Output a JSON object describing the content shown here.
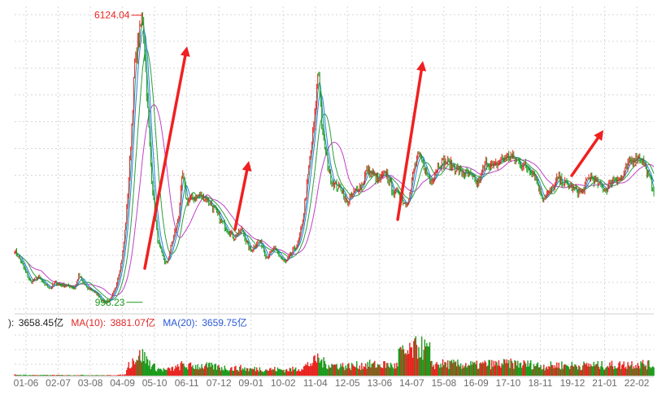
{
  "chart_data": {
    "type": "candlestick",
    "title": "",
    "price_range": [
      880,
      6250
    ],
    "volume_ylim": [
      0,
      14000
    ],
    "grid": true,
    "x_ticks": [
      "01-06",
      "02-07",
      "03-08",
      "04-09",
      "05-10",
      "06-11",
      "07-12",
      "09-01",
      "10-02",
      "11-04",
      "12-05",
      "13-06",
      "14-07",
      "15-08",
      "16-09",
      "17-10",
      "18-11",
      "19-12",
      "21-01",
      "22-02"
    ],
    "price": {
      "x": [
        0,
        1,
        3,
        4,
        6,
        7,
        9,
        10,
        12,
        14,
        15,
        16,
        18,
        19,
        21,
        22,
        23,
        24,
        25,
        26,
        27,
        28,
        29,
        30,
        32,
        33,
        34,
        35,
        36,
        38,
        39,
        41,
        42,
        43,
        45,
        46,
        48,
        50,
        52,
        55,
        57,
        58,
        59,
        60,
        61,
        62,
        63,
        65,
        67,
        68,
        69,
        70,
        71,
        72,
        73,
        75,
        76,
        77,
        79,
        80,
        82,
        83,
        85,
        87,
        88,
        90,
        91,
        93,
        94,
        95,
        96,
        97,
        98,
        99,
        100,
        101,
        102,
        103,
        104,
        105,
        106,
        108,
        110,
        112,
        114,
        115,
        116,
        118,
        120,
        122,
        124,
        126,
        128,
        130,
        132,
        134,
        136,
        138,
        140,
        142,
        144,
        146,
        148,
        150,
        152,
        154,
        156,
        157,
        158,
        160
      ],
      "close": [
        1920,
        1800,
        1500,
        1350,
        1450,
        1340,
        1250,
        1350,
        1300,
        1280,
        1250,
        1480,
        1250,
        1230,
        1120,
        1010,
        1000,
        1050,
        1200,
        1500,
        1850,
        2600,
        3700,
        5200,
        6124,
        4800,
        3500,
        2600,
        2000,
        1650,
        1950,
        2500,
        3300,
        2800,
        2850,
        2900,
        2850,
        2650,
        2400,
        2150,
        2300,
        2050,
        1900,
        2000,
        2100,
        2000,
        1800,
        1950,
        1750,
        1700,
        1850,
        1950,
        2050,
        2400,
        3000,
        4200,
        5200,
        4000,
        3200,
        3100,
        3000,
        2750,
        2950,
        3100,
        3350,
        3250,
        3150,
        3300,
        3100,
        2900,
        3000,
        2800,
        2750,
        2950,
        3400,
        3600,
        3500,
        3300,
        3150,
        3250,
        3450,
        3500,
        3400,
        3300,
        3250,
        3150,
        3100,
        3500,
        3400,
        3550,
        3600,
        3500,
        3400,
        3300,
        2850,
        2950,
        3200,
        3100,
        3000,
        2950,
        3250,
        3100,
        3000,
        3200,
        3200,
        3500,
        3600,
        3550,
        3350,
        3000
      ]
    },
    "series": [
      {
        "name": "6124.04 label",
        "type": "annotation",
        "value": 6124.04
      },
      {
        "name": "998.23 label",
        "type": "annotation",
        "value": 998.23
      }
    ],
    "annotations": [
      {
        "text": "6124.04",
        "kind": "max",
        "value": 6124.04,
        "color": "#e8231f"
      },
      {
        "text": "998.23",
        "kind": "min",
        "value": 998.23,
        "color": "#1a9a1a"
      }
    ],
    "volume_indicator": {
      "prefix": "):",
      "current": "3658.45亿",
      "ma10_label": "MA(10):",
      "ma10_value": "3881.07亿",
      "ma20_label": "MA(20):",
      "ma20_value": "3659.75亿"
    },
    "colors": {
      "up": "#e8231f",
      "down": "#1a9a1a",
      "ma_pink": "#c040c8",
      "ma_green": "#2e9e3a",
      "ma_blue": "#2a7fd4",
      "ma_teal": "#1c9e9e",
      "arrow": "#f02020",
      "grid": "#d6d6d6",
      "tick_text": "#6b6b6b",
      "vol_ma10": "#e02828",
      "vol_ma20": "#2a58d8"
    },
    "arrows": [
      {
        "from": [
          178,
          330
        ],
        "to": [
          230,
          57
        ]
      },
      {
        "from": [
          289,
          282
        ],
        "to": [
          306,
          198
        ]
      },
      {
        "from": [
          489,
          270
        ],
        "to": [
          520,
          75
        ]
      },
      {
        "from": [
          703,
          216
        ],
        "to": [
          742,
          160
        ]
      }
    ]
  }
}
